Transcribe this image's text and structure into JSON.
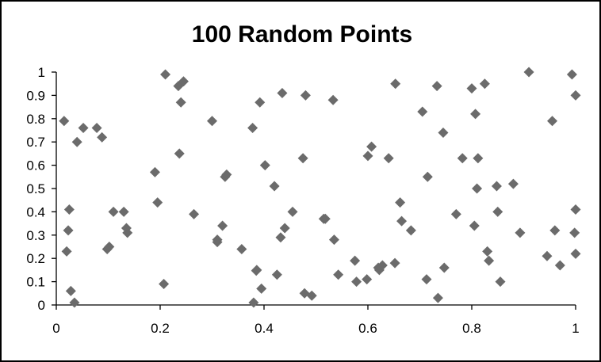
{
  "chart_data": {
    "type": "scatter",
    "title": "100 Random Points",
    "xlabel": "",
    "ylabel": "",
    "xlim": [
      0,
      1
    ],
    "ylim": [
      0,
      1
    ],
    "x_ticks": [
      "0",
      "0.2",
      "0.4",
      "0.6",
      "0.8",
      "1"
    ],
    "y_ticks": [
      "0",
      "0.1",
      "0.2",
      "0.3",
      "0.4",
      "0.5",
      "0.6",
      "0.7",
      "0.8",
      "0.9",
      "1"
    ],
    "grid": false,
    "legend": "none",
    "marker": "diamond",
    "marker_color": "#6b6b6b",
    "series": [
      {
        "points": [
          [
            0.015,
            0.79
          ],
          [
            0.02,
            0.23
          ],
          [
            0.023,
            0.32
          ],
          [
            0.025,
            0.41
          ],
          [
            0.028,
            0.06
          ],
          [
            0.035,
            0.01
          ],
          [
            0.04,
            0.7
          ],
          [
            0.052,
            0.76
          ],
          [
            0.078,
            0.76
          ],
          [
            0.088,
            0.72
          ],
          [
            0.098,
            0.24
          ],
          [
            0.102,
            0.25
          ],
          [
            0.11,
            0.4
          ],
          [
            0.13,
            0.4
          ],
          [
            0.135,
            0.33
          ],
          [
            0.137,
            0.31
          ],
          [
            0.19,
            0.57
          ],
          [
            0.195,
            0.44
          ],
          [
            0.207,
            0.09
          ],
          [
            0.21,
            0.99
          ],
          [
            0.235,
            0.94
          ],
          [
            0.237,
            0.65
          ],
          [
            0.24,
            0.87
          ],
          [
            0.245,
            0.96
          ],
          [
            0.265,
            0.39
          ],
          [
            0.3,
            0.79
          ],
          [
            0.31,
            0.27
          ],
          [
            0.31,
            0.28
          ],
          [
            0.32,
            0.34
          ],
          [
            0.325,
            0.55
          ],
          [
            0.328,
            0.56
          ],
          [
            0.357,
            0.24
          ],
          [
            0.378,
            0.76
          ],
          [
            0.38,
            0.01
          ],
          [
            0.386,
            0.15
          ],
          [
            0.392,
            0.87
          ],
          [
            0.395,
            0.07
          ],
          [
            0.402,
            0.6
          ],
          [
            0.42,
            0.51
          ],
          [
            0.425,
            0.13
          ],
          [
            0.432,
            0.29
          ],
          [
            0.435,
            0.91
          ],
          [
            0.44,
            0.33
          ],
          [
            0.455,
            0.4
          ],
          [
            0.475,
            0.63
          ],
          [
            0.478,
            0.05
          ],
          [
            0.48,
            0.9
          ],
          [
            0.492,
            0.04
          ],
          [
            0.515,
            0.37
          ],
          [
            0.518,
            0.37
          ],
          [
            0.533,
            0.88
          ],
          [
            0.535,
            0.28
          ],
          [
            0.543,
            0.13
          ],
          [
            0.575,
            0.19
          ],
          [
            0.578,
            0.1
          ],
          [
            0.598,
            0.11
          ],
          [
            0.6,
            0.64
          ],
          [
            0.607,
            0.68
          ],
          [
            0.622,
            0.15
          ],
          [
            0.628,
            0.17
          ],
          [
            0.64,
            0.63
          ],
          [
            0.652,
            0.18
          ],
          [
            0.653,
            0.95
          ],
          [
            0.662,
            0.44
          ],
          [
            0.665,
            0.36
          ],
          [
            0.683,
            0.32
          ],
          [
            0.705,
            0.83
          ],
          [
            0.713,
            0.11
          ],
          [
            0.715,
            0.55
          ],
          [
            0.733,
            0.94
          ],
          [
            0.735,
            0.03
          ],
          [
            0.745,
            0.74
          ],
          [
            0.747,
            0.16
          ],
          [
            0.77,
            0.39
          ],
          [
            0.782,
            0.63
          ],
          [
            0.8,
            0.93
          ],
          [
            0.805,
            0.34
          ],
          [
            0.807,
            0.82
          ],
          [
            0.81,
            0.5
          ],
          [
            0.812,
            0.63
          ],
          [
            0.825,
            0.95
          ],
          [
            0.83,
            0.23
          ],
          [
            0.833,
            0.19
          ],
          [
            0.848,
            0.51
          ],
          [
            0.85,
            0.4
          ],
          [
            0.855,
            0.1
          ],
          [
            0.88,
            0.52
          ],
          [
            0.893,
            0.31
          ],
          [
            0.91,
            1.0
          ],
          [
            0.945,
            0.21
          ],
          [
            0.955,
            0.79
          ],
          [
            0.96,
            0.32
          ],
          [
            0.97,
            0.17
          ],
          [
            0.993,
            0.99
          ],
          [
            0.998,
            0.31
          ],
          [
            1.0,
            0.9
          ],
          [
            1.0,
            0.41
          ],
          [
            1.0,
            0.22
          ],
          [
            0.385,
            0.147
          ],
          [
            0.62,
            0.16
          ]
        ]
      }
    ]
  }
}
